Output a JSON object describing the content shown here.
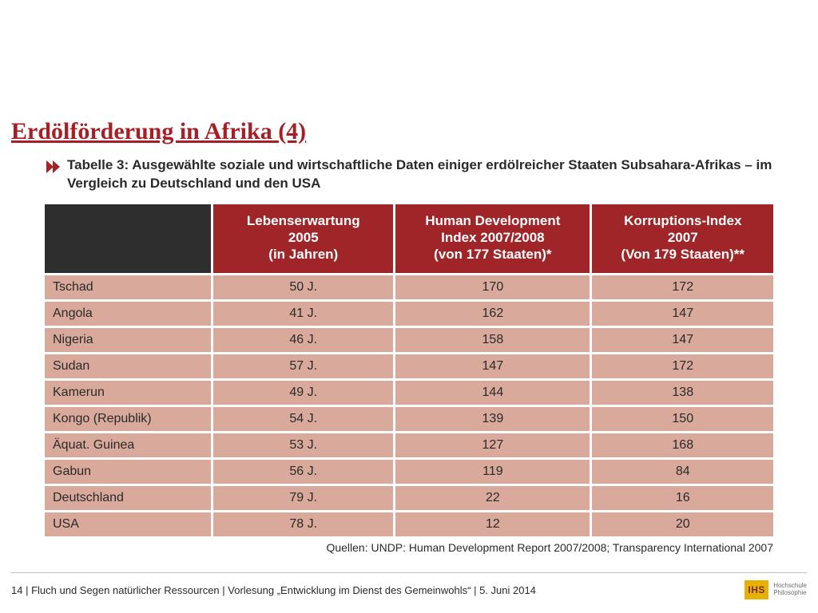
{
  "colors": {
    "title": "#a51f25",
    "header_bg": "#a02528",
    "header_blank_bg": "#2e2e2e",
    "cell_bg": "#d9a99b",
    "cell_border": "#ffffff",
    "text": "#2a2a2a",
    "footer_line": "#bfbfbf",
    "logo_bg": "#e6b100",
    "logo_text": "#7a2a1a"
  },
  "title": "Erdölförderung in Afrika (4)",
  "caption": "Tabelle 3: Ausgewählte soziale und wirtschaftliche Daten einiger erdölreicher Staaten Subsahara-Afrikas –  im Vergleich zu Deutschland und den USA",
  "table": {
    "type": "table",
    "col_widths_pct": [
      23,
      25,
      27,
      25
    ],
    "header_fontsize": 17,
    "body_fontsize": 16,
    "columns": {
      "c1": {
        "l1": "Lebenserwartung",
        "l2": "2005",
        "l3": "(in Jahren)"
      },
      "c2": {
        "l1": "Human Development",
        "l2": "Index 2007/2008",
        "l3": "(von 177 Staaten)*"
      },
      "c3": {
        "l1": "Korruptions-Index",
        "l2": "2007",
        "l3": "(Von 179 Staaten)**"
      }
    },
    "rows": [
      {
        "label": "Tschad",
        "le": "50 J.",
        "hdi": "170",
        "cpi": "172"
      },
      {
        "label": "Angola",
        "le": "41 J.",
        "hdi": "162",
        "cpi": "147"
      },
      {
        "label": "Nigeria",
        "le": "46 J.",
        "hdi": "158",
        "cpi": "147"
      },
      {
        "label": "Sudan",
        "le": "57 J.",
        "hdi": "147",
        "cpi": "172"
      },
      {
        "label": "Kamerun",
        "le": "49 J.",
        "hdi": "144",
        "cpi": "138"
      },
      {
        "label": "Kongo (Republik)",
        "le": "54 J.",
        "hdi": "139",
        "cpi": "150"
      },
      {
        "label": "Äquat. Guinea",
        "le": "53 J.",
        "hdi": "127",
        "cpi": "168"
      },
      {
        "label": "Gabun",
        "le": "56 J.",
        "hdi": "119",
        "cpi": "84"
      },
      {
        "label": "Deutschland",
        "le": "79 J.",
        "hdi": "22",
        "cpi": "16"
      },
      {
        "label": "USA",
        "le": "78 J.",
        "hdi": "12",
        "cpi": "20"
      }
    ]
  },
  "source": "Quellen: UNDP: Human Development Report 2007/2008; Transparency International 2007",
  "footer": {
    "page": "14",
    "sep": " | ",
    "t1": "Fluch und Segen natürlicher Ressourcen",
    "t2": "Vorlesung „Entwicklung im Dienst des Gemeinwohls“",
    "t3": "5. Juni 2014",
    "logo_text": "IHS",
    "logo_sub1": "Hochschule",
    "logo_sub2": "Philosophie"
  }
}
